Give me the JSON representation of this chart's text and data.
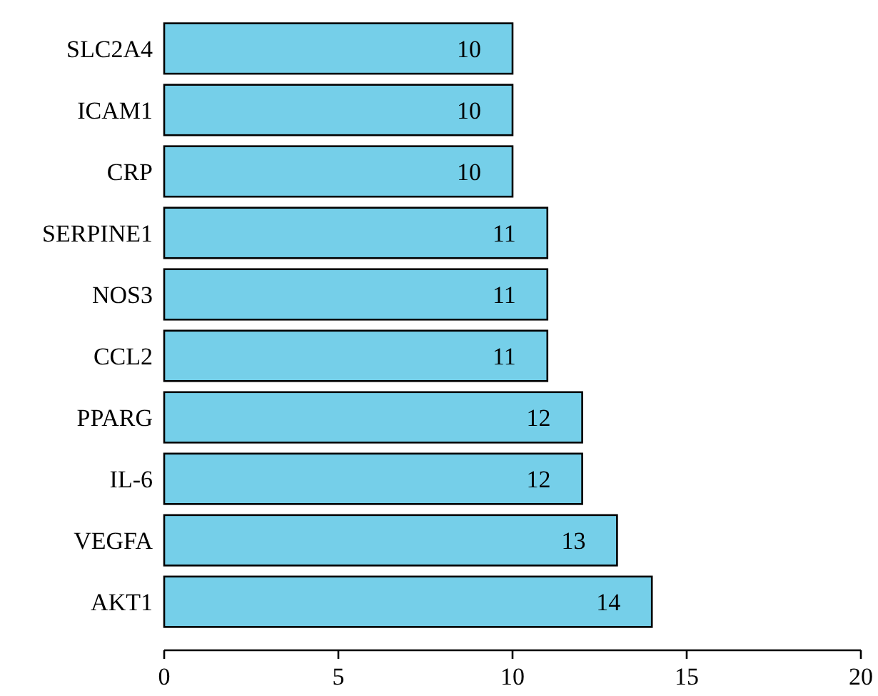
{
  "chart_data": {
    "type": "bar",
    "orientation": "horizontal",
    "categories": [
      "SLC2A4",
      "ICAM1",
      "CRP",
      "SERPINE1",
      "NOS3",
      "CCL2",
      "PPARG",
      "IL-6",
      "VEGFA",
      "AKT1"
    ],
    "values": [
      10,
      10,
      10,
      11,
      11,
      11,
      12,
      12,
      13,
      14
    ],
    "color": "#75cfe9",
    "xlim": [
      0,
      20
    ],
    "xticks": [
      0,
      5,
      10,
      15,
      20
    ],
    "data_labels": true
  }
}
